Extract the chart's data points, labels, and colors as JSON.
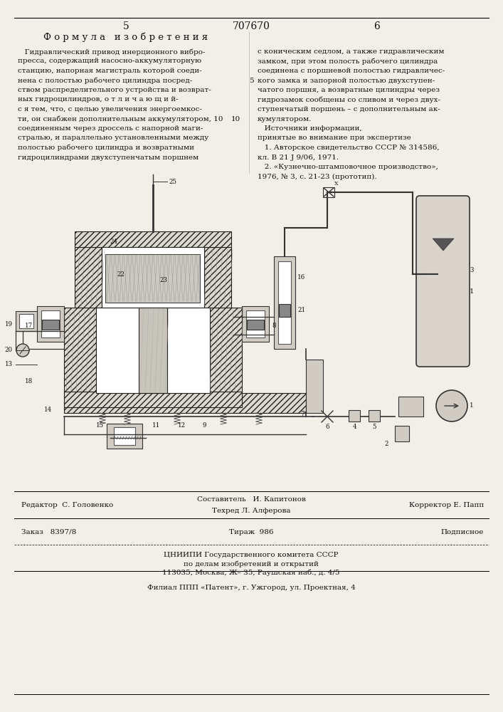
{
  "bg_color": "#f2efe8",
  "top_left_num": "5",
  "top_center_num": "707670",
  "top_right_num": "6",
  "heading": "Ф о р м у л а   и з о б р е т е н и я",
  "left_col": [
    "   Гидравлический привод инерционного вибро-",
    "пресса, содержащий насосно-аккумуляторную",
    "станцию, напорная магистраль которой соеди-",
    "нена с полостью рабочего цилиндра посред-",
    "ством распределительного устройства и возврат-",
    "ных гидроцилиндров, о т л и ч а ю щ и й-",
    "с я тем, что, с целью увеличения энергоемкос-",
    "ти, он снабжен дополнительным аккумулятором, 10",
    "соединенным через дроссель с напорной маги-",
    "стралью, и параллельно установленными между",
    "полостью рабочего цилиндра и возвратными",
    "гидроцилиндрами двухступенчатым поршнем"
  ],
  "right_col": [
    "с коническим седлом, а также гидравлическим",
    "замком, при этом полость рабочего цилиндра",
    "соединена с поршневой полостью гидравличес-",
    "кого замка и запорной полостью двухступен-",
    "чатого поршня, а возвратные цилиндры через",
    "гидрозамок сообщены со сливом и через двух-",
    "ступенчатый поршень – с дополнительным ак-",
    "кумулятором.",
    "   Источники информации,",
    "принятые во внимание при экспертизе",
    "   1. Авторское свидетельство СССР № 314586,",
    "кл. В 21 J 9/06, 1971.",
    "   2. «Кузнечно-штамповочное производство»,",
    "1976, № 3, с. 21-23 (прототип)."
  ],
  "bottom_editor": "Редактор  С. Головенко",
  "bottom_composer": "Составитель   И. Капитонов",
  "bottom_techred": "Техред Л. Алферова",
  "bottom_corrector": "Корректор Е. Папп",
  "bottom_order": "Заказ   8397/8",
  "bottom_tirazh": "Тираж  986",
  "bottom_podpisnoe": "Подписное",
  "bottom_org1": "ЦНИИПИ Государственного комитета СССР",
  "bottom_org2": "по делам изобретений и открытий",
  "bottom_address": "113035, Москва, Ж– 35, Раушская наб., д. 4/5",
  "bottom_filial": "Филиал ППП «Патент», г. Ужгород, ул. Проектная, 4"
}
